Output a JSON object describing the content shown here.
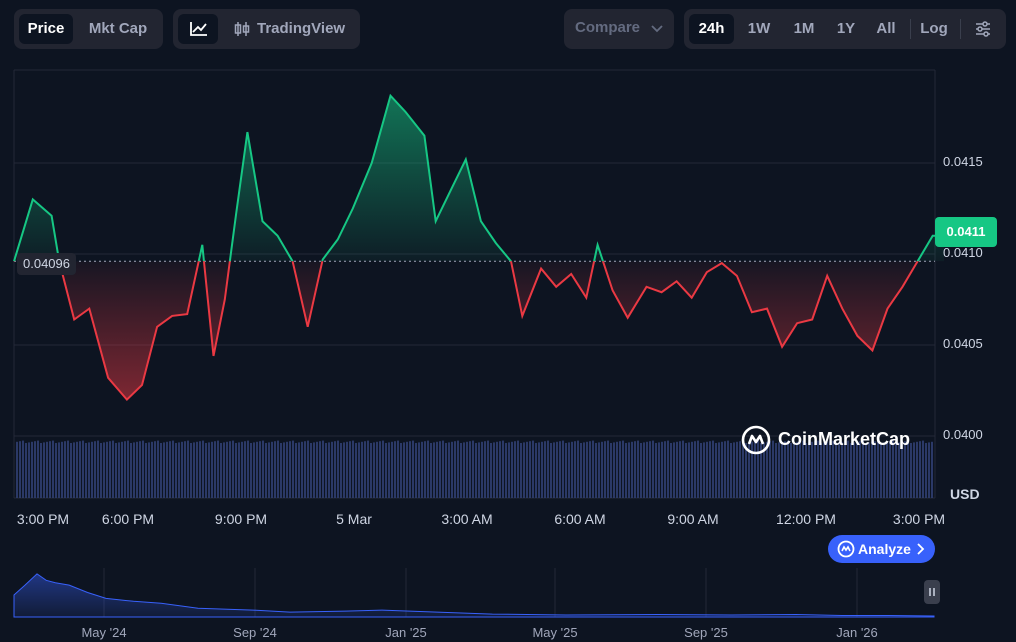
{
  "toolbar": {
    "price_tab": "Price",
    "mktcap_tab": "Mkt Cap",
    "tradingview_label": "TradingView",
    "compare_label": "Compare",
    "ranges": [
      "24h",
      "1W",
      "1M",
      "1Y",
      "All"
    ],
    "active_range": "24h",
    "log_label": "Log"
  },
  "colors": {
    "background": "#0d1421",
    "up": "#16c784",
    "down": "#ea3943",
    "accent": "#3861fb",
    "volume": "#2d3b6b"
  },
  "watermark": "CoinMarketCap",
  "analyze_label": "Analyze",
  "currency_label": "USD",
  "chart_data": {
    "type": "line",
    "title": "",
    "y_ticks": [
      "0.0415",
      "0.0410",
      "0.0405",
      "0.0400"
    ],
    "y_tick_values": [
      0.0415,
      0.041,
      0.0405,
      0.04
    ],
    "ylim": [
      0.03986,
      0.04193
    ],
    "x_ticks": [
      "3:00 PM",
      "6:00 PM",
      "9:00 PM",
      "5 Mar",
      "3:00 AM",
      "6:00 AM",
      "9:00 AM",
      "12:00 PM",
      "3:00 PM"
    ],
    "x_tick_hours": [
      0,
      3,
      6,
      9,
      12,
      15,
      18,
      21,
      24
    ],
    "x_hours_range": [
      0,
      24.7
    ],
    "reference_price": 0.04096,
    "reference_label": "0.04096",
    "current_price": 0.0411,
    "current_label": "0.0411",
    "grid": true,
    "series": [
      {
        "x_hours": [
          0.0,
          0.5,
          1.0,
          1.2,
          1.6,
          2.0,
          2.5,
          3.0,
          3.4,
          3.8,
          4.2,
          4.6,
          5.0,
          5.3,
          5.6,
          5.9,
          6.2,
          6.6,
          7.0,
          7.4,
          7.8,
          8.2,
          8.6,
          9.0,
          9.5,
          10.0,
          10.4,
          10.9,
          11.2,
          11.6,
          12.0,
          12.4,
          12.8,
          13.2,
          13.5,
          14.0,
          14.4,
          14.8,
          15.2,
          15.5,
          15.9,
          16.3,
          16.8,
          17.2,
          17.6,
          18.0,
          18.4,
          18.8,
          19.2,
          19.6,
          20.0,
          20.4,
          20.8,
          21.2,
          21.6,
          22.0,
          22.4,
          22.8,
          23.2,
          23.6,
          24.0,
          24.4,
          24.7
        ],
        "values": [
          0.04096,
          0.0413,
          0.04121,
          0.04096,
          0.04064,
          0.0407,
          0.04032,
          0.0402,
          0.04028,
          0.0406,
          0.04066,
          0.04067,
          0.04105,
          0.04044,
          0.04075,
          0.04122,
          0.04167,
          0.04118,
          0.0411,
          0.04096,
          0.0406,
          0.04097,
          0.04108,
          0.04125,
          0.0415,
          0.04187,
          0.04178,
          0.04165,
          0.04118,
          0.04135,
          0.04152,
          0.04118,
          0.04106,
          0.04096,
          0.04066,
          0.04092,
          0.04082,
          0.04089,
          0.04076,
          0.04105,
          0.0408,
          0.04065,
          0.04082,
          0.04079,
          0.04085,
          0.04076,
          0.0409,
          0.04095,
          0.04088,
          0.04068,
          0.0407,
          0.04049,
          0.04062,
          0.04064,
          0.04088,
          0.0407,
          0.04055,
          0.04047,
          0.0407,
          0.04082,
          0.04096,
          0.0411,
          0.0411
        ]
      }
    ],
    "volume_label": "volume"
  },
  "navigator": {
    "labels": [
      "May '24",
      "Sep '24",
      "Jan '25",
      "May '25",
      "Sep '25",
      "Jan '26"
    ]
  }
}
